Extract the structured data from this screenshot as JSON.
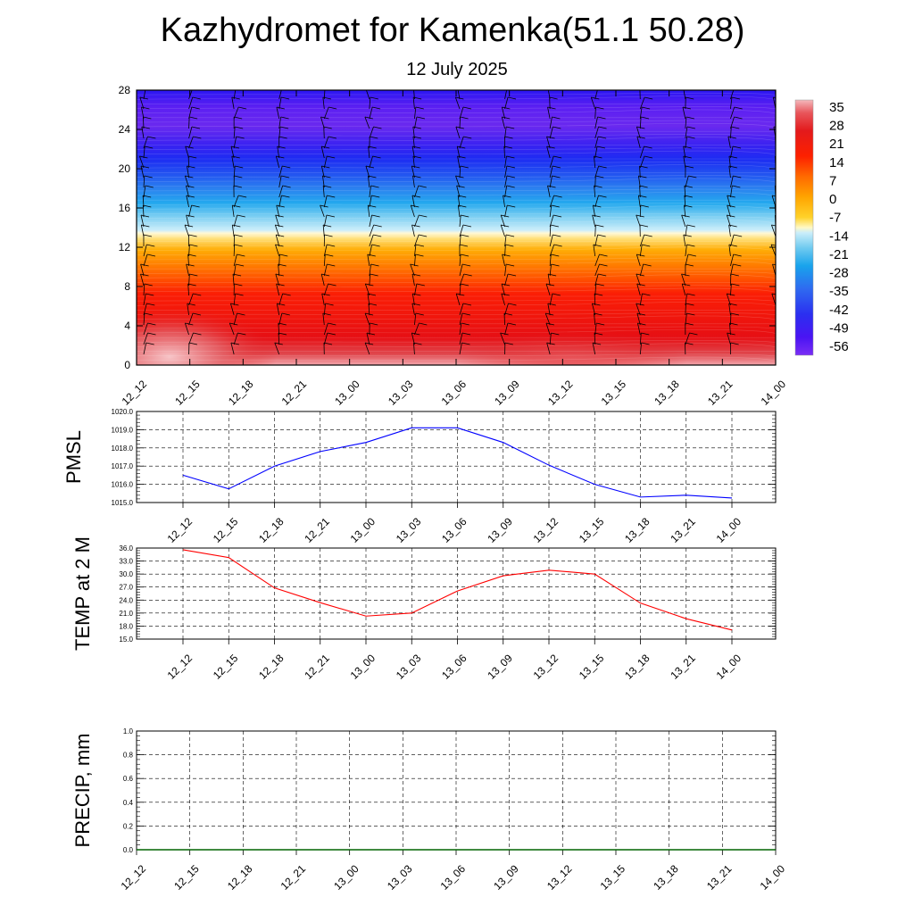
{
  "title": "Kazhydromet for Kamenka(51.1 50.28)",
  "subtitle": "12 July 2025",
  "time_labels": [
    "12_12",
    "12_15",
    "12_18",
    "12_21",
    "13_00",
    "13_03",
    "13_06",
    "13_09",
    "13_12",
    "13_15",
    "13_18",
    "13_21",
    "14_00"
  ],
  "colorbar": {
    "labels": [
      "35",
      "28",
      "21",
      "14",
      "7",
      "0",
      "-7",
      "-14",
      "-21",
      "-28",
      "-35",
      "-42",
      "-49",
      "-56"
    ],
    "colors": [
      "#f4b8bc",
      "#e24a4f",
      "#e31a1c",
      "#fe2e00",
      "#ff7000",
      "#ffae00",
      "#ffe04a",
      "#fff9c6",
      "#7ed0ef",
      "#1aa6ec",
      "#2f6af0",
      "#2b2ff0",
      "#3b0df5",
      "#7a2df5"
    ]
  },
  "chart_data": [
    {
      "type": "heatmap",
      "name": "cross-section",
      "x": [
        "12_12",
        "12_15",
        "12_18",
        "12_21",
        "13_00",
        "13_03",
        "13_06",
        "13_09",
        "13_12",
        "13_15",
        "13_18",
        "13_21",
        "14_00"
      ],
      "ylim": [
        0,
        28
      ],
      "yticks": [
        "0",
        "4",
        "8",
        "12",
        "16",
        "20",
        "24",
        "28"
      ],
      "zrange": [
        -56,
        35
      ],
      "grid": false
    },
    {
      "type": "line",
      "ylabel": "PMSL",
      "x": [
        "12_12",
        "12_15",
        "12_18",
        "12_21",
        "13_00",
        "13_03",
        "13_06",
        "13_09",
        "13_12",
        "13_15",
        "13_18",
        "13_21",
        "14_00"
      ],
      "values": [
        1016.5,
        1015.75,
        1017.0,
        1017.8,
        1018.3,
        1019.1,
        1019.1,
        1018.3,
        1017.05,
        1016.0,
        1015.3,
        1015.4,
        1015.25
      ],
      "ylim": [
        1015.0,
        1020.0
      ],
      "yticks": [
        "1015.0",
        "1016.0",
        "1017.0",
        "1018.0",
        "1019.0",
        "1020.0"
      ],
      "color": "#0000ff",
      "grid": true
    },
    {
      "type": "line",
      "ylabel": "TEMP at 2 M",
      "x": [
        "12_12",
        "12_15",
        "12_18",
        "12_21",
        "13_00",
        "13_03",
        "13_06",
        "13_09",
        "13_12",
        "13_15",
        "13_18",
        "13_21",
        "14_00"
      ],
      "values": [
        35.6,
        33.8,
        26.8,
        23.4,
        20.3,
        21.0,
        26.1,
        29.6,
        30.9,
        30.0,
        23.3,
        19.7,
        17.1
      ],
      "ylim": [
        15.0,
        36.0
      ],
      "yticks": [
        "15.0",
        "18.0",
        "21.0",
        "24.0",
        "27.0",
        "30.0",
        "33.0",
        "36.0"
      ],
      "color": "#ff0000",
      "grid": true
    },
    {
      "type": "line",
      "ylabel": "PRECIP, mm",
      "x": [
        "12_12",
        "12_15",
        "12_18",
        "12_21",
        "13_00",
        "13_03",
        "13_06",
        "13_09",
        "13_12",
        "13_15",
        "13_18",
        "13_21",
        "14_00"
      ],
      "values": [
        0,
        0,
        0,
        0,
        0,
        0,
        0,
        0,
        0,
        0,
        0,
        0,
        0
      ],
      "ylim": [
        0.0,
        1.0
      ],
      "yticks": [
        "0.0",
        "0.2",
        "0.4",
        "0.6",
        "0.8",
        "1.0"
      ],
      "color": "#006400",
      "grid": true
    }
  ]
}
